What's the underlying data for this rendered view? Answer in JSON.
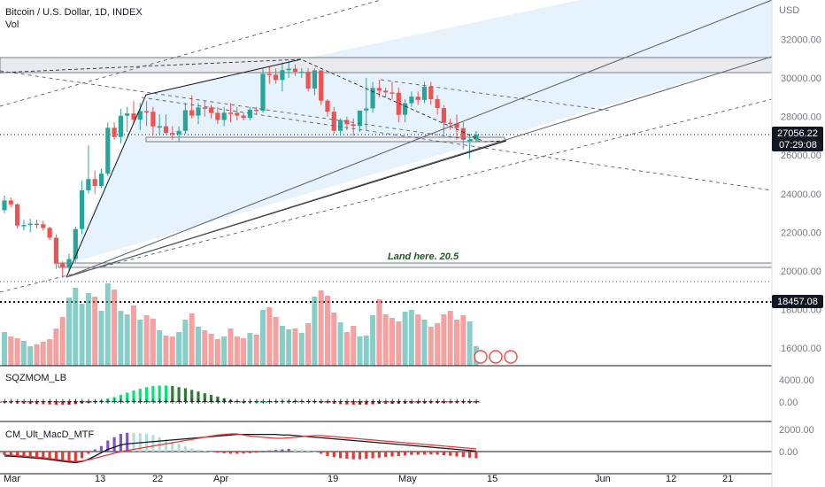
{
  "header": {
    "title": "Bitcoin / U.S. Dollar, 1D, INDEX",
    "vol_label": "Vol",
    "currency": "USD"
  },
  "price_tags": {
    "last_price": "27056.22",
    "countdown": "07:29:08",
    "level": "18457.08"
  },
  "annotation": "Land here.   20.5",
  "panes": {
    "squeeze": {
      "title": "SQZMOM_LB"
    },
    "macd": {
      "title": "CM_Ult_MacD_MTF"
    }
  },
  "colors": {
    "up": "#26a69a",
    "down": "#ef5350",
    "channel_fill": "#e3f2fd",
    "zone_fill": "#e9eaed",
    "signal": "#e53935",
    "macd_line": "#131722"
  },
  "chart_data": [
    {
      "type": "candlestick",
      "title": "Bitcoin / U.S. Dollar, 1D, INDEX",
      "x_ticks": [
        "Mar",
        "13",
        "22",
        "Apr",
        "19",
        "May",
        "15",
        "Jun",
        "12",
        "21"
      ],
      "y_ticks": [
        16000,
        18000,
        20000,
        22000,
        24000,
        26000,
        28000,
        30000,
        32000
      ],
      "ylim": [
        15000,
        33500
      ],
      "x": [
        "03-01",
        "03-02",
        "03-03",
        "03-04",
        "03-05",
        "03-06",
        "03-07",
        "03-08",
        "03-09",
        "03-10",
        "03-11",
        "03-12",
        "03-13",
        "03-14",
        "03-15",
        "03-16",
        "03-17",
        "03-18",
        "03-19",
        "03-20",
        "03-21",
        "03-22",
        "03-23",
        "03-24",
        "03-25",
        "03-26",
        "03-27",
        "03-28",
        "03-29",
        "03-30",
        "03-31",
        "04-01",
        "04-02",
        "04-03",
        "04-04",
        "04-05",
        "04-06",
        "04-07",
        "04-08",
        "04-09",
        "04-10",
        "04-11",
        "04-12",
        "04-13",
        "04-14",
        "04-15",
        "04-16",
        "04-17",
        "04-18",
        "04-19",
        "04-20",
        "04-21",
        "04-22",
        "04-23",
        "04-24",
        "04-25",
        "04-26",
        "04-27",
        "04-28",
        "04-29",
        "04-30",
        "05-01",
        "05-02",
        "05-03",
        "05-04",
        "05-05",
        "05-06",
        "05-07",
        "05-08",
        "05-09",
        "05-10",
        "05-11",
        "05-12",
        "05-13"
      ],
      "open": [
        23150,
        23650,
        23450,
        22350,
        22380,
        22450,
        22420,
        22230,
        21720,
        20380,
        20200,
        20620,
        22170,
        24180,
        24760,
        24400,
        25040,
        27420,
        26940,
        28040,
        28160,
        27840,
        28280,
        28250,
        27490,
        27500,
        27150,
        27080,
        27260,
        28330,
        28050,
        28470,
        28460,
        28190,
        27820,
        28200,
        28190,
        28050,
        27930,
        28350,
        28300,
        30210,
        30170,
        29890,
        30400,
        30480,
        30320,
        30320,
        29450,
        30390,
        28820,
        28250,
        27260,
        27820,
        27600,
        27510,
        28310,
        28420,
        29480,
        29340,
        29250,
        29230,
        28090,
        28690,
        29030,
        28860,
        29540,
        28900,
        28440,
        27680,
        27630,
        27400,
        26800,
        26800
      ],
      "high": [
        23900,
        23800,
        23500,
        22650,
        22700,
        22650,
        22600,
        22300,
        21900,
        20500,
        20900,
        22300,
        24700,
        26500,
        25200,
        25300,
        27700,
        27700,
        28400,
        28500,
        28800,
        28700,
        28800,
        28500,
        28100,
        28100,
        27500,
        27500,
        28700,
        29100,
        28700,
        28800,
        28600,
        28500,
        28500,
        28700,
        28500,
        28200,
        28500,
        28500,
        30500,
        30600,
        30500,
        30800,
        30900,
        30700,
        30500,
        30500,
        30500,
        30400,
        28900,
        28500,
        27900,
        28000,
        27900,
        28300,
        30000,
        29800,
        29900,
        29500,
        29800,
        29500,
        28900,
        29300,
        29300,
        29800,
        29800,
        29100,
        28600,
        27900,
        28100,
        27700,
        27100,
        27250
      ],
      "low": [
        23000,
        23300,
        22200,
        22100,
        22000,
        22200,
        22100,
        21600,
        20100,
        19650,
        20000,
        20400,
        21900,
        24000,
        24000,
        24300,
        24900,
        26800,
        26600,
        27200,
        27600,
        27300,
        27500,
        27000,
        27100,
        27100,
        26800,
        26700,
        27100,
        27900,
        27600,
        28000,
        27900,
        27600,
        27500,
        27700,
        27800,
        27800,
        27800,
        28100,
        28200,
        29700,
        29700,
        29300,
        30000,
        30100,
        30000,
        29300,
        29100,
        28600,
        28000,
        27100,
        27000,
        27300,
        27000,
        27200,
        27300,
        28200,
        29000,
        29000,
        28900,
        27700,
        27700,
        28500,
        28600,
        28700,
        28600,
        28100,
        27100,
        27300,
        26800,
        26300,
        25800,
        26700
      ],
      "close": [
        23650,
        23450,
        22350,
        22380,
        22450,
        22420,
        22230,
        21720,
        20380,
        20200,
        20620,
        22170,
        24180,
        24760,
        24400,
        25040,
        27420,
        26940,
        28040,
        28160,
        27840,
        28280,
        28250,
        27490,
        27500,
        27150,
        27080,
        27260,
        28330,
        28050,
        28470,
        28460,
        28190,
        27820,
        28200,
        28190,
        28050,
        27930,
        28350,
        28300,
        30210,
        30170,
        29890,
        30400,
        30480,
        30320,
        30320,
        29450,
        30390,
        28820,
        28250,
        27260,
        27820,
        27600,
        27510,
        28310,
        28420,
        29480,
        29340,
        29250,
        29230,
        28090,
        28690,
        29030,
        28860,
        29540,
        28900,
        28440,
        27680,
        27630,
        27400,
        26800,
        26800,
        27056
      ],
      "volume": [
        38,
        33,
        31,
        28,
        22,
        24,
        27,
        30,
        42,
        55,
        77,
        88,
        70,
        82,
        78,
        62,
        93,
        86,
        62,
        58,
        68,
        52,
        57,
        53,
        40,
        34,
        33,
        38,
        52,
        59,
        44,
        40,
        36,
        30,
        33,
        42,
        33,
        31,
        37,
        35,
        63,
        66,
        55,
        45,
        41,
        42,
        37,
        48,
        78,
        85,
        79,
        60,
        49,
        38,
        45,
        33,
        34,
        57,
        75,
        58,
        54,
        50,
        61,
        63,
        58,
        52,
        44,
        48,
        58,
        62,
        52,
        57,
        50,
        22
      ]
    },
    {
      "type": "bar",
      "title": "SQZMOM_LB",
      "y_ticks": [
        0,
        4000
      ],
      "values": [
        -150,
        -200,
        -250,
        -300,
        -350,
        -380,
        -400,
        -450,
        -500,
        -520,
        -480,
        -380,
        -250,
        -100,
        100,
        300,
        600,
        900,
        1300,
        1700,
        2100,
        2400,
        2700,
        2900,
        3000,
        3000,
        2900,
        2700,
        2500,
        2200,
        1900,
        1600,
        1300,
        1000,
        700,
        400,
        200,
        0,
        0,
        0,
        0,
        100,
        200,
        250,
        300,
        250,
        200,
        150,
        100,
        0,
        -150,
        -300,
        -400,
        -450,
        -480,
        -470,
        -450,
        -400,
        -350,
        -350,
        -330,
        -300,
        -280,
        -260,
        -240,
        -220,
        -200,
        -190,
        -180,
        -180,
        -180,
        -180,
        -190,
        -190
      ]
    },
    {
      "type": "bar",
      "title": "CM_Ult_MacD_MTF",
      "y_ticks": [
        0,
        2000
      ],
      "values": [
        -300,
        -350,
        -400,
        -450,
        -500,
        -550,
        -600,
        -700,
        -800,
        -900,
        -950,
        -1000,
        -600,
        -200,
        200,
        500,
        1000,
        1300,
        1600,
        1700,
        1700,
        1650,
        1600,
        1500,
        1300,
        1100,
        900,
        700,
        500,
        300,
        200,
        100,
        0,
        -100,
        -150,
        -200,
        -200,
        -180,
        -150,
        -100,
        0,
        100,
        150,
        200,
        250,
        250,
        200,
        100,
        0,
        -200,
        -400,
        -500,
        -600,
        -650,
        -700,
        -700,
        -650,
        -600,
        -550,
        -500,
        -450,
        -400,
        -350,
        -300,
        -280,
        -260,
        -250,
        -280,
        -320,
        -380,
        -450,
        -500,
        -550,
        -600
      ],
      "macd": [
        -400,
        -420,
        -460,
        -500,
        -550,
        -600,
        -650,
        -720,
        -800,
        -880,
        -950,
        -1000,
        -900,
        -700,
        -400,
        -100,
        200,
        400,
        600,
        700,
        750,
        800,
        850,
        900,
        950,
        1000,
        1050,
        1100,
        1150,
        1200,
        1250,
        1300,
        1350,
        1400,
        1450,
        1500,
        1550,
        1550,
        1550,
        1550,
        1550,
        1550,
        1550,
        1500,
        1500,
        1450,
        1400,
        1350,
        1300,
        1250,
        1200,
        1150,
        1100,
        1050,
        1000,
        950,
        900,
        850,
        800,
        750,
        700,
        650,
        600,
        550,
        500,
        450,
        400,
        350,
        300,
        250,
        200,
        150,
        100,
        50
      ],
      "signal": [
        -300,
        -320,
        -360,
        -400,
        -450,
        -500,
        -550,
        -620,
        -700,
        -780,
        -850,
        -900,
        -850,
        -750,
        -600,
        -450,
        -300,
        -150,
        0,
        100,
        200,
        300,
        400,
        500,
        600,
        700,
        800,
        900,
        1000,
        1100,
        1200,
        1300,
        1400,
        1500,
        1550,
        1600,
        1600,
        1500,
        1400,
        1350,
        1300,
        1250,
        1200,
        1200,
        1250,
        1300,
        1350,
        1400,
        1450,
        1450,
        1400,
        1350,
        1300,
        1250,
        1200,
        1150,
        1100,
        1050,
        1000,
        950,
        900,
        850,
        800,
        750,
        700,
        650,
        600,
        550,
        500,
        450,
        400,
        350,
        300,
        250
      ]
    }
  ]
}
